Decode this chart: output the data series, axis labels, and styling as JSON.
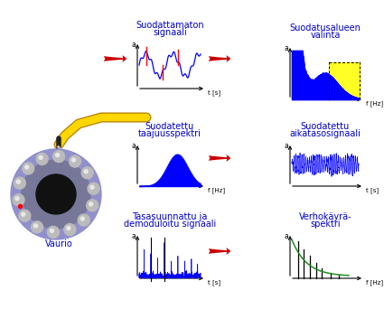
{
  "title_color": "#0000CD",
  "arrow_color": "#CC0000",
  "signal_color": "#0000FF",
  "envelope_color": "#228B22",
  "background": "#FFFFFF",
  "vaurio_label": "Vaurio",
  "labels": {
    "suodattamaton": [
      "Suodattamaton",
      "signaali"
    ],
    "suodatus_alue": [
      "Suodatusalueen",
      "valinta"
    ],
    "suodatettu_taajuus": [
      "Suodatettu",
      "taajuusspektri"
    ],
    "suodatettu_aika": [
      "Suodatettu",
      "aikatasosignaali"
    ],
    "tasasuunnattu": [
      "Tasasuunnattu ja",
      "demoduloitu signaali"
    ],
    "verhokayra": [
      "Verhokäyrä-",
      "spektri"
    ]
  },
  "axis_label_a": "a",
  "axis_label_t": "t [s]",
  "axis_label_f": "f [Hz]"
}
